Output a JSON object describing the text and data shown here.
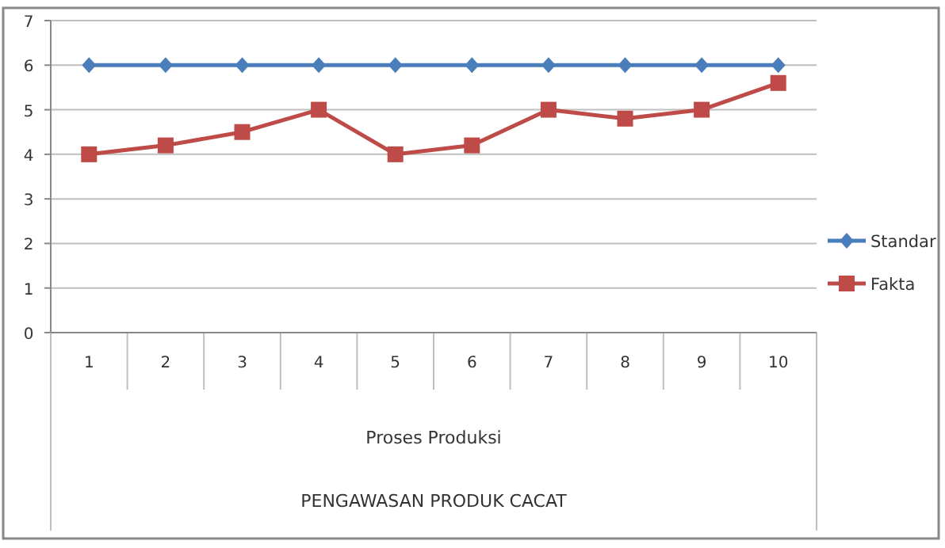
{
  "chart_data": {
    "type": "line",
    "xlabel": "Proses Produksi",
    "annotations": [
      "PENGAWASAN PRODUK CACAT"
    ],
    "categories": [
      "1",
      "2",
      "3",
      "4",
      "5",
      "6",
      "7",
      "8",
      "9",
      "10"
    ],
    "series": [
      {
        "name": "Standar",
        "color": "#4a7ebb",
        "marker": "diamond",
        "values": [
          6,
          6,
          6,
          6,
          6,
          6,
          6,
          6,
          6,
          6
        ]
      },
      {
        "name": "Fakta",
        "color": "#be4b48",
        "marker": "square",
        "values": [
          4,
          4.2,
          4.5,
          5,
          4,
          4.2,
          5,
          4.8,
          5,
          5.6
        ]
      }
    ],
    "ylim": [
      0,
      7
    ],
    "yticks": [
      0,
      1,
      2,
      3,
      4,
      5,
      6,
      7
    ],
    "grid": "y",
    "legend": "right",
    "line_style": "solid"
  }
}
